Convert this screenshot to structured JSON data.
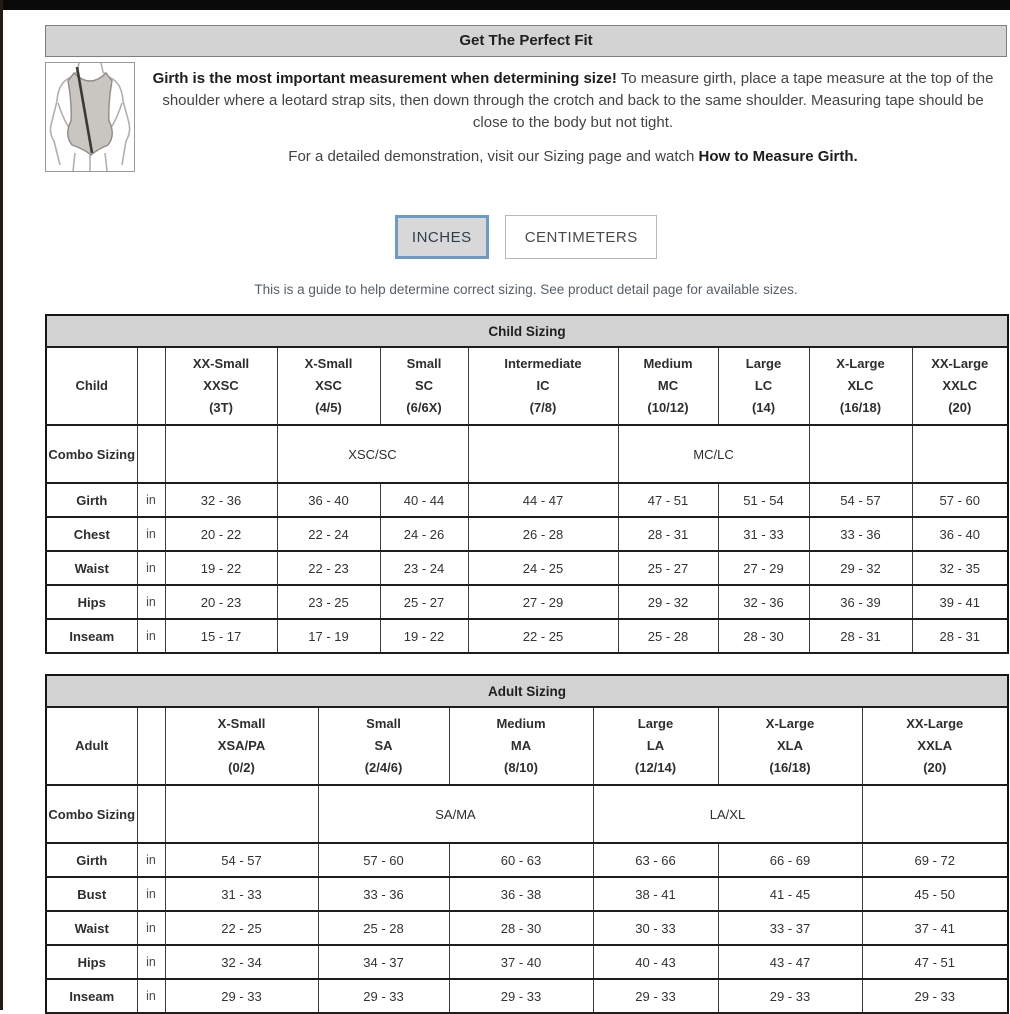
{
  "page": {
    "title": "Get The Perfect Fit",
    "intro_bold": "Girth is the most important measurement when determining size!",
    "intro_rest": " To measure girth, place a tape measure at the top of the shoulder where a leotard strap sits, then down through the crotch and back to the same shoulder. Measuring tape should be close to the body but not tight.",
    "demo_text": "For a detailed demonstration, visit our Sizing page and watch ",
    "demo_bold": "How to Measure Girth.",
    "guide_note": "This is a guide to help determine correct sizing. See product detail page for available sizes."
  },
  "unit_toggle": {
    "inches_label": "INCHES",
    "centimeters_label": "CENTIMETERS",
    "selected": "INCHES"
  },
  "icons": {
    "leotard_figure": "leotard-girth-measurement-diagram"
  },
  "colors": {
    "bar_gray": "#d3d3d3",
    "selected_button_border": "#6d9ac8",
    "selected_button_bg": "#d8d8d8",
    "table_border": "#1d1d1d"
  },
  "child_table": {
    "title": "Child Sizing",
    "row_label": "Child",
    "combo_label": "Combo Sizing",
    "unit": "in",
    "columns": [
      {
        "name": "XX-Small",
        "code": "XXSC",
        "sizes": "(3T)"
      },
      {
        "name": "X-Small",
        "code": "XSC",
        "sizes": "(4/5)"
      },
      {
        "name": "Small",
        "code": "SC",
        "sizes": "(6/6X)"
      },
      {
        "name": "Intermediate",
        "code": "IC",
        "sizes": "(7/8)"
      },
      {
        "name": "Medium",
        "code": "MC",
        "sizes": "(10/12)"
      },
      {
        "name": "Large",
        "code": "LC",
        "sizes": "(14)"
      },
      {
        "name": "X-Large",
        "code": "XLC",
        "sizes": "(16/18)"
      },
      {
        "name": "XX-Large",
        "code": "XXLC",
        "sizes": "(20)"
      }
    ],
    "combo_cells": [
      {
        "label": "",
        "span": 1
      },
      {
        "label": "XSC/SC",
        "span": 2
      },
      {
        "label": "",
        "span": 1
      },
      {
        "label": "MC/LC",
        "span": 2
      },
      {
        "label": "",
        "span": 1
      },
      {
        "label": "",
        "span": 1
      }
    ],
    "rows": [
      {
        "label": "Girth",
        "values": [
          "32 - 36",
          "36 - 40",
          "40 - 44",
          "44 - 47",
          "47 - 51",
          "51 - 54",
          "54 - 57",
          "57 - 60"
        ]
      },
      {
        "label": "Chest",
        "values": [
          "20 - 22",
          "22 - 24",
          "24 - 26",
          "26 - 28",
          "28 - 31",
          "31 - 33",
          "33 - 36",
          "36 - 40"
        ]
      },
      {
        "label": "Waist",
        "values": [
          "19 - 22",
          "22 - 23",
          "23 - 24",
          "24 - 25",
          "25 - 27",
          "27 - 29",
          "29 - 32",
          "32 - 35"
        ]
      },
      {
        "label": "Hips",
        "values": [
          "20 - 23",
          "23 - 25",
          "25 - 27",
          "27 - 29",
          "29 - 32",
          "32 - 36",
          "36 - 39",
          "39 - 41"
        ]
      },
      {
        "label": "Inseam",
        "values": [
          "15 - 17",
          "17 - 19",
          "19 - 22",
          "22 - 25",
          "25 - 28",
          "28 - 30",
          "28 - 31",
          "28 - 31"
        ]
      }
    ]
  },
  "adult_table": {
    "title": "Adult Sizing",
    "row_label": "Adult",
    "combo_label": "Combo Sizing",
    "unit": "in",
    "columns": [
      {
        "name": "X-Small",
        "code": "XSA/PA",
        "sizes": "(0/2)"
      },
      {
        "name": "Small",
        "code": "SA",
        "sizes": "(2/4/6)"
      },
      {
        "name": "Medium",
        "code": "MA",
        "sizes": "(8/10)"
      },
      {
        "name": "Large",
        "code": "LA",
        "sizes": "(12/14)"
      },
      {
        "name": "X-Large",
        "code": "XLA",
        "sizes": "(16/18)"
      },
      {
        "name": "XX-Large",
        "code": "XXLA",
        "sizes": "(20)"
      }
    ],
    "combo_cells": [
      {
        "label": "",
        "span": 1
      },
      {
        "label": "SA/MA",
        "span": 2
      },
      {
        "label": "LA/XL",
        "span": 2
      },
      {
        "label": "",
        "span": 1
      }
    ],
    "rows": [
      {
        "label": "Girth",
        "values": [
          "54 - 57",
          "57 - 60",
          "60 - 63",
          "63 - 66",
          "66 - 69",
          "69 - 72"
        ]
      },
      {
        "label": "Bust",
        "values": [
          "31 - 33",
          "33 - 36",
          "36 - 38",
          "38 - 41",
          "41 - 45",
          "45 - 50"
        ]
      },
      {
        "label": "Waist",
        "values": [
          "22 - 25",
          "25 - 28",
          "28 - 30",
          "30 - 33",
          "33 - 37",
          "37 - 41"
        ]
      },
      {
        "label": "Hips",
        "values": [
          "32 - 34",
          "34 - 37",
          "37 - 40",
          "40 - 43",
          "43 - 47",
          "47 - 51"
        ]
      },
      {
        "label": "Inseam",
        "values": [
          "29 - 33",
          "29 - 33",
          "29 - 33",
          "29 - 33",
          "29 - 33",
          "29 - 33"
        ]
      }
    ]
  }
}
